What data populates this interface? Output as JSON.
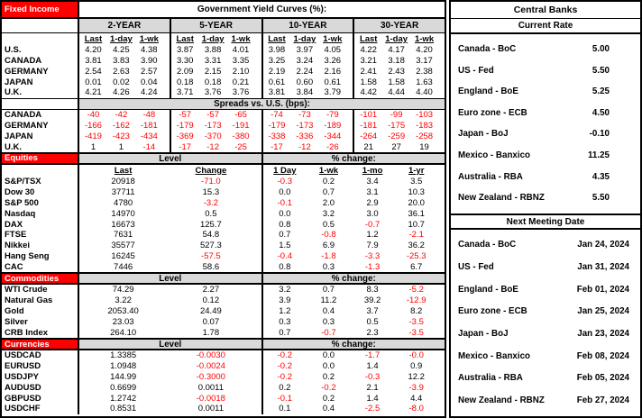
{
  "fixed_income": {
    "section_label": "Fixed Income",
    "title": "Government Yield Curves (%):",
    "groups": [
      "2-YEAR",
      "5-YEAR",
      "10-YEAR",
      "30-YEAR"
    ],
    "subheaders": [
      "Last",
      "1-day",
      "1-wk"
    ],
    "yields": {
      "rows": [
        {
          "label": "U.S.",
          "values": [
            "4.20",
            "4.25",
            "4.38",
            "3.87",
            "3.88",
            "4.01",
            "3.98",
            "3.97",
            "4.05",
            "4.22",
            "4.17",
            "4.20"
          ]
        },
        {
          "label": "CANADA",
          "values": [
            "3.81",
            "3.83",
            "3.90",
            "3.30",
            "3.31",
            "3.35",
            "3.25",
            "3.24",
            "3.26",
            "3.21",
            "3.18",
            "3.17"
          ]
        },
        {
          "label": "GERMANY",
          "values": [
            "2.54",
            "2.63",
            "2.57",
            "2.09",
            "2.15",
            "2.10",
            "2.19",
            "2.24",
            "2.16",
            "2.41",
            "2.43",
            "2.38"
          ]
        },
        {
          "label": "JAPAN",
          "values": [
            "0.01",
            "0.02",
            "0.04",
            "0.18",
            "0.18",
            "0.21",
            "0.61",
            "0.60",
            "0.61",
            "1.58",
            "1.58",
            "1.63"
          ]
        },
        {
          "label": "U.K.",
          "values": [
            "4.21",
            "4.26",
            "4.24",
            "3.71",
            "3.76",
            "3.76",
            "3.81",
            "3.84",
            "3.79",
            "4.42",
            "4.44",
            "4.40"
          ]
        }
      ]
    },
    "spreads": {
      "title": "Spreads vs. U.S. (bps):",
      "rows": [
        {
          "label": "CANADA",
          "values": [
            "-40",
            "-42",
            "-48",
            "-57",
            "-57",
            "-65",
            "-74",
            "-73",
            "-79",
            "-101",
            "-99",
            "-103"
          ]
        },
        {
          "label": "GERMANY",
          "values": [
            "-166",
            "-162",
            "-181",
            "-179",
            "-173",
            "-191",
            "-179",
            "-173",
            "-189",
            "-181",
            "-175",
            "-183"
          ]
        },
        {
          "label": "JAPAN",
          "values": [
            "-419",
            "-423",
            "-434",
            "-369",
            "-370",
            "-380",
            "-338",
            "-336",
            "-344",
            "-264",
            "-259",
            "-258"
          ]
        },
        {
          "label": "U.K.",
          "values": [
            "1",
            "1",
            "-14",
            "-17",
            "-12",
            "-25",
            "-17",
            "-12",
            "-26",
            "21",
            "27",
            "19"
          ]
        }
      ]
    }
  },
  "equities": {
    "section_label": "Equities",
    "level_header": "Level",
    "pct_header": "% change:",
    "subheaders": [
      "Last",
      "Change",
      "1 Day",
      "1-wk",
      "1-mo",
      "1-yr"
    ],
    "rows": [
      {
        "label": "S&P/TSX",
        "values": [
          "20918",
          "-71.0",
          "-0.3",
          "0.2",
          "3.4",
          "3.5"
        ]
      },
      {
        "label": "Dow 30",
        "values": [
          "37711",
          "15.3",
          "0.0",
          "0.7",
          "3.1",
          "10.3"
        ]
      },
      {
        "label": "S&P 500",
        "values": [
          "4780",
          "-3.2",
          "-0.1",
          "2.0",
          "2.9",
          "20.0"
        ]
      },
      {
        "label": "Nasdaq",
        "values": [
          "14970",
          "0.5",
          "0.0",
          "3.2",
          "3.0",
          "36.1"
        ]
      },
      {
        "label": "DAX",
        "values": [
          "16673",
          "125.7",
          "0.8",
          "0.5",
          "-0.7",
          "10.7"
        ]
      },
      {
        "label": "FTSE",
        "values": [
          "7631",
          "54.8",
          "0.7",
          "-0.8",
          "1.2",
          "-2.1"
        ]
      },
      {
        "label": "Nikkei",
        "values": [
          "35577",
          "527.3",
          "1.5",
          "6.9",
          "7.9",
          "36.2"
        ]
      },
      {
        "label": "Hang Seng",
        "values": [
          "16245",
          "-57.5",
          "-0.4",
          "-1.8",
          "-3.3",
          "-25.3"
        ]
      },
      {
        "label": "CAC",
        "values": [
          "7446",
          "58.6",
          "0.8",
          "0.3",
          "-1.3",
          "6.7"
        ]
      }
    ]
  },
  "commodities": {
    "section_label": "Commodities",
    "level_header": "Level",
    "pct_header": "% change:",
    "rows": [
      {
        "label": "WTI Crude",
        "values": [
          "74.29",
          "2.27",
          "3.2",
          "0.7",
          "8.3",
          "-5.2"
        ]
      },
      {
        "label": "Natural Gas",
        "values": [
          "3.22",
          "0.12",
          "3.9",
          "11.2",
          "39.2",
          "-12.9"
        ]
      },
      {
        "label": "Gold",
        "values": [
          "2053.40",
          "24.49",
          "1.2",
          "0.4",
          "3.7",
          "8.2"
        ]
      },
      {
        "label": "Silver",
        "values": [
          "23.03",
          "0.07",
          "0.3",
          "0.3",
          "0.5",
          "-3.5"
        ]
      },
      {
        "label": "CRB Index",
        "values": [
          "264.10",
          "1.78",
          "0.7",
          "-0.7",
          "2.3",
          "-3.5"
        ]
      }
    ]
  },
  "currencies": {
    "section_label": "Currencies",
    "level_header": "Level",
    "pct_header": "% change:",
    "rows": [
      {
        "label": "USDCAD",
        "values": [
          "1.3385",
          "-0.0030",
          "-0.2",
          "0.0",
          "-1.7",
          "-0.0"
        ]
      },
      {
        "label": "EURUSD",
        "values": [
          "1.0948",
          "-0.0024",
          "-0.2",
          "0.0",
          "1.4",
          "0.9"
        ]
      },
      {
        "label": "USDJPY",
        "values": [
          "144.99",
          "-0.3000",
          "-0.2",
          "0.2",
          "-0.3",
          "12.2"
        ]
      },
      {
        "label": "AUDUSD",
        "values": [
          "0.6699",
          "0.0011",
          "0.2",
          "-0.2",
          "2.1",
          "-3.9"
        ]
      },
      {
        "label": "GBPUSD",
        "values": [
          "1.2742",
          "-0.0018",
          "-0.1",
          "0.2",
          "1.4",
          "4.4"
        ]
      },
      {
        "label": "USDCHF",
        "values": [
          "0.8531",
          "0.0011",
          "0.1",
          "0.4",
          "-2.5",
          "-8.0"
        ]
      }
    ]
  },
  "central_banks": {
    "title": "Central Banks",
    "current_rate_header": "Current Rate",
    "rates": [
      {
        "label": "Canada - BoC",
        "value": "5.00"
      },
      {
        "label": "US - Fed",
        "value": "5.50"
      },
      {
        "label": "England - BoE",
        "value": "5.25"
      },
      {
        "label": "Euro zone - ECB",
        "value": "4.50"
      },
      {
        "label": "Japan - BoJ",
        "value": "-0.10"
      },
      {
        "label": "Mexico - Banxico",
        "value": "11.25"
      },
      {
        "label": "Australia - RBA",
        "value": "4.35"
      },
      {
        "label": "New Zealand - RBNZ",
        "value": "5.50"
      }
    ],
    "next_meeting_header": "Next Meeting Date",
    "meetings": [
      {
        "label": "Canada - BoC",
        "date": "Jan 24, 2024"
      },
      {
        "label": "US - Fed",
        "date": "Jan 31, 2024"
      },
      {
        "label": "England - BoE",
        "date": "Feb 01, 2024"
      },
      {
        "label": "Euro zone - ECB",
        "date": "Jan 25, 2024"
      },
      {
        "label": "Japan - BoJ",
        "date": "Jan 23, 2024"
      },
      {
        "label": "Mexico - Banxico",
        "date": "Feb 08, 2024"
      },
      {
        "label": "Australia - RBA",
        "date": "Feb 05, 2024"
      },
      {
        "label": "New Zealand - RBNZ",
        "date": "Feb 27, 2024"
      }
    ]
  },
  "colors": {
    "banner_red": "#FF0000",
    "header_gray": "#D9D9D9",
    "negative_red": "#FF0000"
  }
}
